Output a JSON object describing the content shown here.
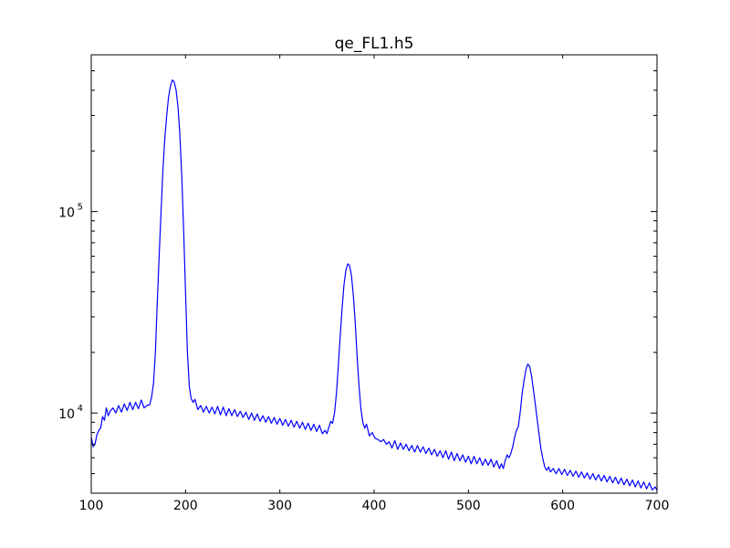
{
  "chart_data": {
    "type": "line",
    "title": "qe_FL1.h5",
    "xlabel": "",
    "ylabel": "",
    "xlim": [
      100,
      700
    ],
    "ylim": [
      4000,
      600000
    ],
    "yscale": "log",
    "grid": false,
    "x_ticks": [
      100,
      200,
      300,
      400,
      500,
      600,
      700
    ],
    "y_tick_labels": [
      {
        "value": 10000,
        "base": "10",
        "exp": "4"
      },
      {
        "value": 100000,
        "base": "10",
        "exp": "5"
      }
    ],
    "series": [
      {
        "color": "#0000ff",
        "points": [
          [
            100,
            7600
          ],
          [
            102,
            6800
          ],
          [
            104,
            7000
          ],
          [
            106,
            7800
          ],
          [
            108,
            8200
          ],
          [
            110,
            8400
          ],
          [
            112,
            9600
          ],
          [
            114,
            9200
          ],
          [
            116,
            10600
          ],
          [
            118,
            9700
          ],
          [
            120,
            10200
          ],
          [
            123,
            10600
          ],
          [
            126,
            10000
          ],
          [
            129,
            10900
          ],
          [
            132,
            10100
          ],
          [
            135,
            11100
          ],
          [
            138,
            10300
          ],
          [
            141,
            11300
          ],
          [
            144,
            10400
          ],
          [
            147,
            11300
          ],
          [
            150,
            10500
          ],
          [
            153,
            11600
          ],
          [
            156,
            10600
          ],
          [
            159,
            10900
          ],
          [
            162,
            11000
          ],
          [
            164,
            12000
          ],
          [
            166,
            14000
          ],
          [
            168,
            20000
          ],
          [
            170,
            35000
          ],
          [
            172,
            60000
          ],
          [
            174,
            100000
          ],
          [
            176,
            160000
          ],
          [
            178,
            230000
          ],
          [
            180,
            300000
          ],
          [
            182,
            370000
          ],
          [
            184,
            420000
          ],
          [
            186,
            450000
          ],
          [
            188,
            440000
          ],
          [
            190,
            400000
          ],
          [
            192,
            330000
          ],
          [
            194,
            240000
          ],
          [
            196,
            150000
          ],
          [
            198,
            80000
          ],
          [
            200,
            40000
          ],
          [
            202,
            20000
          ],
          [
            204,
            13500
          ],
          [
            206,
            11800
          ],
          [
            208,
            11300
          ],
          [
            210,
            11700
          ],
          [
            213,
            10400
          ],
          [
            216,
            10900
          ],
          [
            219,
            10100
          ],
          [
            222,
            10800
          ],
          [
            225,
            10000
          ],
          [
            228,
            10700
          ],
          [
            231,
            9900
          ],
          [
            234,
            10800
          ],
          [
            237,
            9800
          ],
          [
            240,
            10700
          ],
          [
            243,
            9700
          ],
          [
            246,
            10500
          ],
          [
            249,
            9700
          ],
          [
            252,
            10400
          ],
          [
            255,
            9600
          ],
          [
            258,
            10200
          ],
          [
            261,
            9500
          ],
          [
            264,
            10100
          ],
          [
            267,
            9300
          ],
          [
            270,
            10000
          ],
          [
            273,
            9200
          ],
          [
            276,
            9900
          ],
          [
            279,
            9100
          ],
          [
            282,
            9700
          ],
          [
            285,
            9000
          ],
          [
            288,
            9600
          ],
          [
            291,
            8900
          ],
          [
            294,
            9500
          ],
          [
            297,
            8800
          ],
          [
            300,
            9400
          ],
          [
            303,
            8700
          ],
          [
            306,
            9300
          ],
          [
            309,
            8600
          ],
          [
            312,
            9200
          ],
          [
            315,
            8500
          ],
          [
            318,
            9100
          ],
          [
            321,
            8400
          ],
          [
            324,
            9000
          ],
          [
            327,
            8300
          ],
          [
            330,
            8900
          ],
          [
            333,
            8200
          ],
          [
            336,
            8800
          ],
          [
            339,
            8100
          ],
          [
            342,
            8700
          ],
          [
            345,
            7900
          ],
          [
            348,
            8200
          ],
          [
            350,
            7900
          ],
          [
            352,
            8500
          ],
          [
            354,
            9100
          ],
          [
            356,
            8900
          ],
          [
            358,
            10000
          ],
          [
            360,
            12500
          ],
          [
            362,
            17000
          ],
          [
            364,
            24000
          ],
          [
            366,
            33000
          ],
          [
            368,
            43000
          ],
          [
            370,
            51000
          ],
          [
            372,
            55000
          ],
          [
            374,
            54000
          ],
          [
            376,
            48000
          ],
          [
            378,
            38000
          ],
          [
            380,
            28000
          ],
          [
            382,
            19000
          ],
          [
            384,
            13500
          ],
          [
            386,
            10500
          ],
          [
            388,
            9000
          ],
          [
            390,
            8400
          ],
          [
            392,
            8800
          ],
          [
            395,
            7700
          ],
          [
            398,
            8000
          ],
          [
            401,
            7500
          ],
          [
            404,
            7400
          ],
          [
            407,
            7200
          ],
          [
            410,
            7400
          ],
          [
            413,
            7000
          ],
          [
            416,
            7200
          ],
          [
            419,
            6700
          ],
          [
            422,
            7300
          ],
          [
            425,
            6600
          ],
          [
            428,
            7100
          ],
          [
            431,
            6600
          ],
          [
            434,
            7000
          ],
          [
            437,
            6500
          ],
          [
            440,
            6900
          ],
          [
            443,
            6400
          ],
          [
            446,
            6900
          ],
          [
            449,
            6400
          ],
          [
            452,
            6800
          ],
          [
            455,
            6300
          ],
          [
            458,
            6700
          ],
          [
            461,
            6200
          ],
          [
            464,
            6600
          ],
          [
            467,
            6100
          ],
          [
            470,
            6500
          ],
          [
            473,
            6000
          ],
          [
            476,
            6500
          ],
          [
            479,
            5900
          ],
          [
            482,
            6400
          ],
          [
            485,
            5800
          ],
          [
            488,
            6300
          ],
          [
            491,
            5800
          ],
          [
            494,
            6200
          ],
          [
            497,
            5700
          ],
          [
            500,
            6100
          ],
          [
            503,
            5600
          ],
          [
            506,
            6100
          ],
          [
            509,
            5600
          ],
          [
            512,
            6000
          ],
          [
            515,
            5500
          ],
          [
            518,
            5900
          ],
          [
            521,
            5500
          ],
          [
            524,
            5900
          ],
          [
            527,
            5400
          ],
          [
            530,
            5800
          ],
          [
            533,
            5300
          ],
          [
            535,
            5600
          ],
          [
            537,
            5300
          ],
          [
            539,
            5800
          ],
          [
            541,
            6200
          ],
          [
            543,
            6000
          ],
          [
            545,
            6300
          ],
          [
            547,
            6800
          ],
          [
            549,
            7600
          ],
          [
            551,
            8200
          ],
          [
            553,
            8600
          ],
          [
            555,
            10200
          ],
          [
            557,
            12500
          ],
          [
            559,
            14500
          ],
          [
            561,
            16500
          ],
          [
            563,
            17500
          ],
          [
            565,
            17000
          ],
          [
            567,
            15200
          ],
          [
            569,
            13000
          ],
          [
            571,
            11000
          ],
          [
            573,
            9200
          ],
          [
            575,
            7800
          ],
          [
            577,
            6600
          ],
          [
            579,
            5900
          ],
          [
            581,
            5400
          ],
          [
            583,
            5200
          ],
          [
            585,
            5400
          ],
          [
            587,
            5100
          ],
          [
            590,
            5300
          ],
          [
            593,
            5000
          ],
          [
            596,
            5300
          ],
          [
            599,
            4950
          ],
          [
            602,
            5250
          ],
          [
            605,
            4900
          ],
          [
            608,
            5200
          ],
          [
            611,
            4850
          ],
          [
            614,
            5150
          ],
          [
            617,
            4800
          ],
          [
            620,
            5100
          ],
          [
            623,
            4750
          ],
          [
            626,
            5050
          ],
          [
            629,
            4700
          ],
          [
            632,
            5000
          ],
          [
            635,
            4650
          ],
          [
            638,
            4950
          ],
          [
            641,
            4600
          ],
          [
            644,
            4900
          ],
          [
            647,
            4550
          ],
          [
            650,
            4850
          ],
          [
            653,
            4500
          ],
          [
            656,
            4800
          ],
          [
            659,
            4450
          ],
          [
            662,
            4750
          ],
          [
            665,
            4400
          ],
          [
            668,
            4700
          ],
          [
            671,
            4350
          ],
          [
            674,
            4650
          ],
          [
            677,
            4300
          ],
          [
            680,
            4600
          ],
          [
            683,
            4250
          ],
          [
            686,
            4550
          ],
          [
            689,
            4200
          ],
          [
            692,
            4500
          ],
          [
            695,
            4150
          ],
          [
            698,
            4300
          ],
          [
            700,
            4150
          ]
        ]
      }
    ]
  }
}
